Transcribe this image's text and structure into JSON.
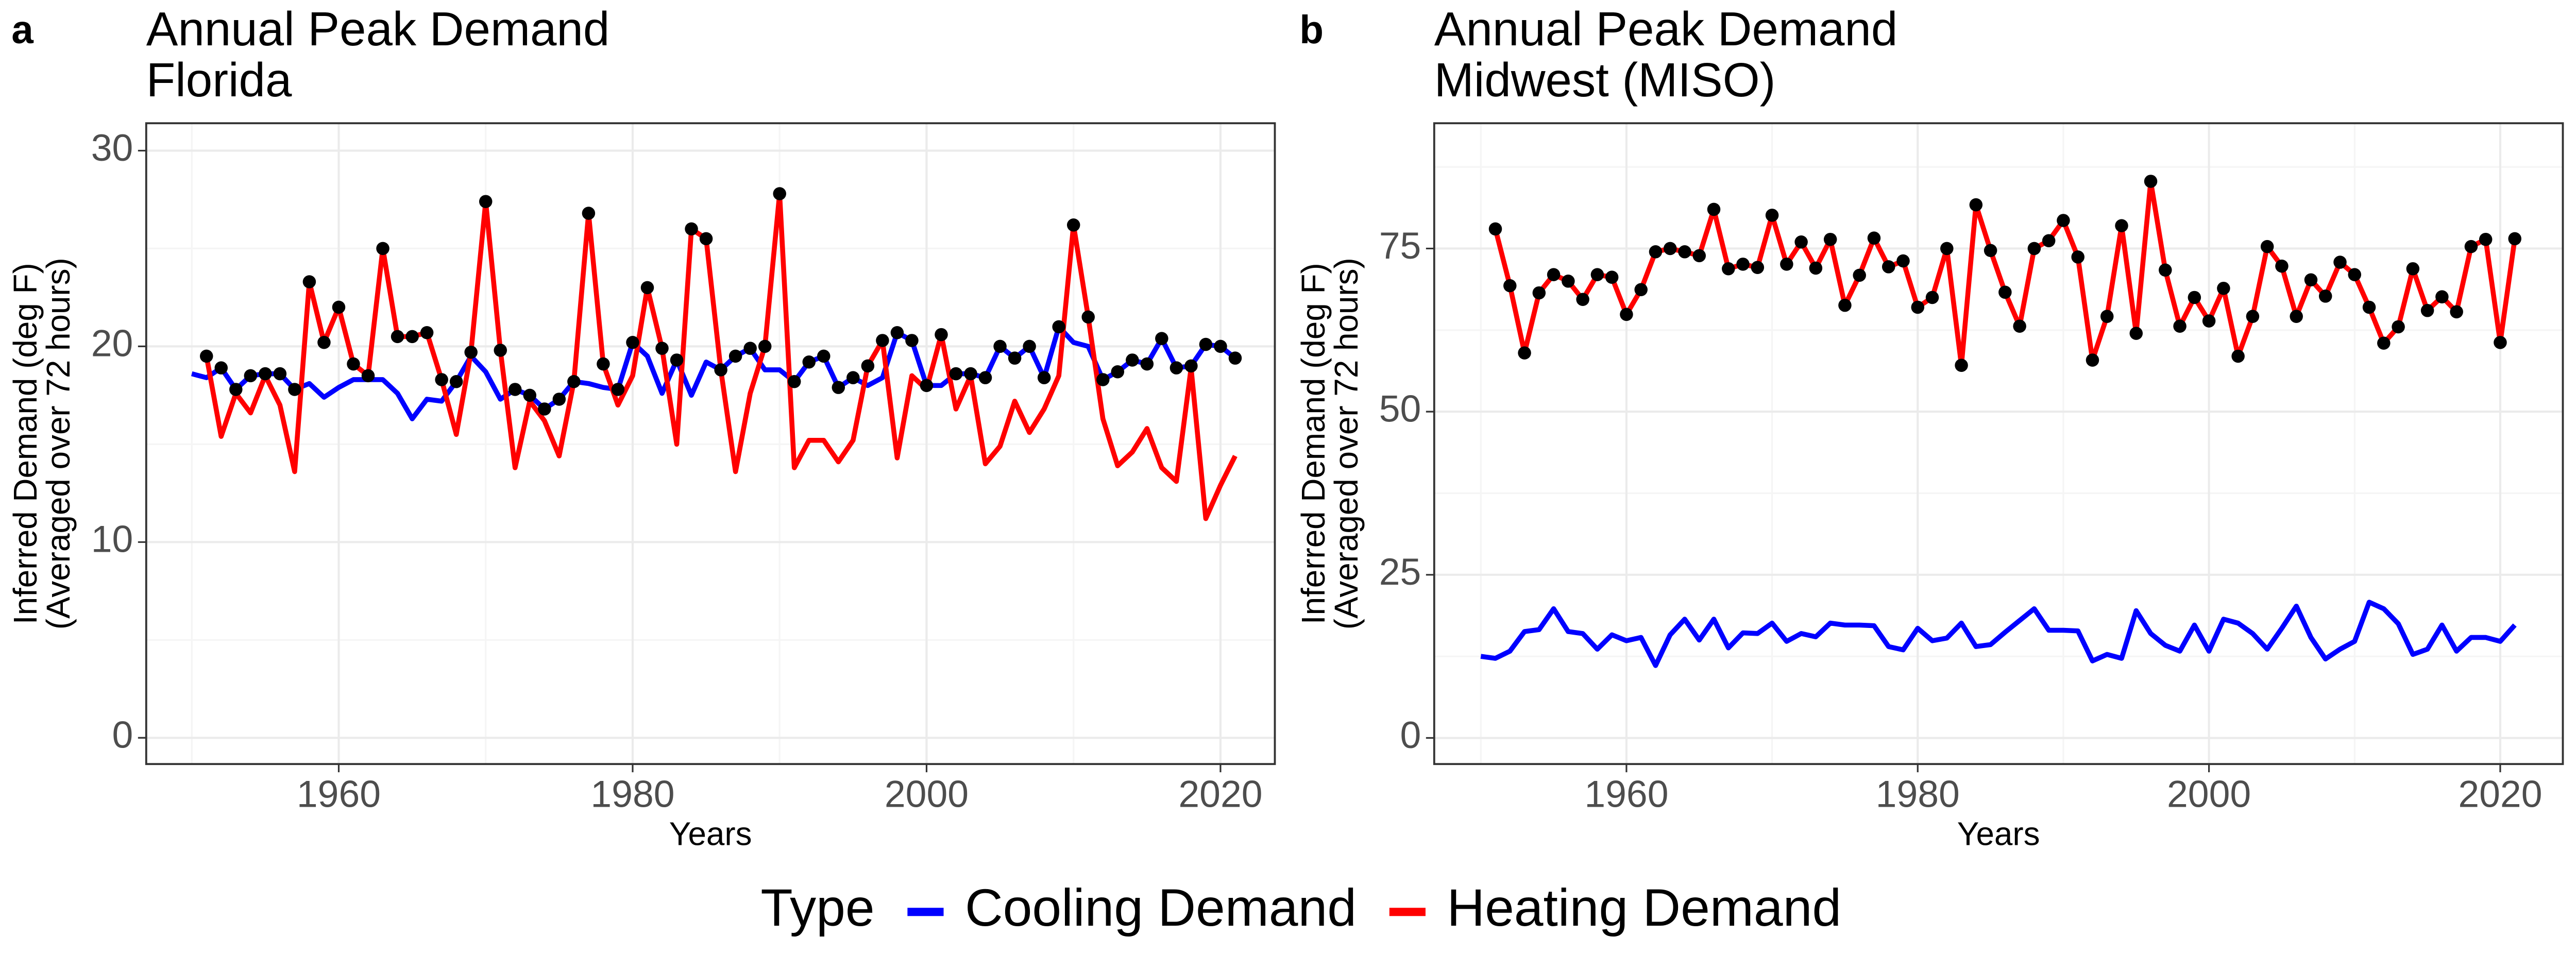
{
  "chart_data": [
    {
      "type": "line",
      "panel": "a",
      "title": "Annual Peak Demand",
      "subtitle": "Florida",
      "xlabel": "Years",
      "ylabel": [
        "Inferred Demand (deg F)",
        "(Averaged over 72 hours)"
      ],
      "legend_title": "Type",
      "x": [
        1950,
        1951,
        1952,
        1953,
        1954,
        1955,
        1956,
        1957,
        1958,
        1959,
        1960,
        1961,
        1962,
        1963,
        1964,
        1965,
        1966,
        1967,
        1968,
        1969,
        1970,
        1971,
        1972,
        1973,
        1974,
        1975,
        1976,
        1977,
        1978,
        1979,
        1980,
        1981,
        1982,
        1983,
        1984,
        1985,
        1986,
        1987,
        1988,
        1989,
        1990,
        1991,
        1992,
        1993,
        1994,
        1995,
        1996,
        1997,
        1998,
        1999,
        2000,
        2001,
        2002,
        2003,
        2004,
        2005,
        2006,
        2007,
        2008,
        2009,
        2010,
        2011,
        2012,
        2013,
        2014,
        2015,
        2016,
        2017,
        2018,
        2019,
        2020,
        2021
      ],
      "series": [
        {
          "name": "Cooling Demand",
          "color": "#0000ff",
          "values": [
            18.6,
            18.4,
            18.9,
            17.8,
            18.5,
            18.6,
            18.6,
            17.8,
            18.1,
            17.4,
            17.9,
            18.3,
            18.3,
            18.3,
            17.6,
            16.3,
            17.3,
            17.2,
            18.2,
            19.5,
            18.7,
            17.3,
            17.8,
            17.5,
            16.8,
            17.3,
            18.2,
            18.1,
            17.9,
            17.8,
            20.2,
            19.5,
            17.6,
            19.3,
            17.5,
            19.2,
            18.8,
            19.5,
            19.9,
            18.8,
            18.8,
            18.2,
            19.2,
            19.5,
            17.9,
            18.4,
            18.0,
            18.4,
            20.7,
            20.3,
            18.0,
            18.0,
            18.6,
            18.6,
            18.4,
            20.0,
            19.4,
            20.0,
            18.4,
            21.0,
            20.2,
            20.0,
            18.3,
            18.7,
            19.3,
            19.1,
            20.4,
            18.9,
            19.0,
            20.1,
            20.0,
            19.4
          ]
        },
        {
          "name": "Heating Demand",
          "color": "#ff0000",
          "values": [
            null,
            19.5,
            15.4,
            17.6,
            16.6,
            18.5,
            17.0,
            13.6,
            23.3,
            20.2,
            22.0,
            19.1,
            18.5,
            25.0,
            20.5,
            20.5,
            20.7,
            18.3,
            15.5,
            19.7,
            27.4,
            19.8,
            13.8,
            17.2,
            16.2,
            14.4,
            18.2,
            26.8,
            19.1,
            17.0,
            18.5,
            23.0,
            19.9,
            15.0,
            26.0,
            25.5,
            18.8,
            13.6,
            17.6,
            20.0,
            27.8,
            13.8,
            15.2,
            15.2,
            14.1,
            15.2,
            19.0,
            20.3,
            14.3,
            18.5,
            17.8,
            20.6,
            16.8,
            18.5,
            14.0,
            14.9,
            17.2,
            15.6,
            16.8,
            18.5,
            26.2,
            21.5,
            16.3,
            13.9,
            14.6,
            15.8,
            13.8,
            13.1,
            18.9,
            11.2,
            12.9,
            14.4
          ]
        }
      ],
      "xlim": [
        1946.9,
        2023.7
      ],
      "xticks": [
        1960,
        1980,
        2000,
        2020
      ],
      "ylim": [
        -1.34,
        31.4
      ],
      "yticks": [
        0,
        10,
        20,
        30
      ],
      "grid": true,
      "peak_points_color": "#000000"
    },
    {
      "type": "line",
      "panel": "b",
      "title": "Annual Peak Demand",
      "subtitle": "Midwest (MISO)",
      "xlabel": "Years",
      "ylabel": [
        "Inferred Demand (deg F)",
        "(Averaged over 72 hours)"
      ],
      "x": [
        1950,
        1951,
        1952,
        1953,
        1954,
        1955,
        1956,
        1957,
        1958,
        1959,
        1960,
        1961,
        1962,
        1963,
        1964,
        1965,
        1966,
        1967,
        1968,
        1969,
        1970,
        1971,
        1972,
        1973,
        1974,
        1975,
        1976,
        1977,
        1978,
        1979,
        1980,
        1981,
        1982,
        1983,
        1984,
        1985,
        1986,
        1987,
        1988,
        1989,
        1990,
        1991,
        1992,
        1993,
        1994,
        1995,
        1996,
        1997,
        1998,
        1999,
        2000,
        2001,
        2002,
        2003,
        2004,
        2005,
        2006,
        2007,
        2008,
        2009,
        2010,
        2011,
        2012,
        2013,
        2014,
        2015,
        2016,
        2017,
        2018,
        2019,
        2020,
        2021
      ],
      "series": [
        {
          "name": "Cooling Demand",
          "color": "#0000ff",
          "values": [
            12.5,
            12.2,
            13.3,
            16.3,
            16.6,
            19.8,
            16.3,
            16,
            13.6,
            15.8,
            14.9,
            15.4,
            11.1,
            15.8,
            18.2,
            15,
            18.2,
            13.8,
            16.1,
            16,
            17.6,
            14.8,
            16,
            15.5,
            17.6,
            17.3,
            17.3,
            17.2,
            14,
            13.5,
            16.8,
            14.9,
            15.3,
            17.6,
            14,
            14.3,
            16.2,
            18,
            19.8,
            16.5,
            16.5,
            16.4,
            11.8,
            12.8,
            12.2,
            19.5,
            16,
            14.2,
            13.3,
            17.3,
            13.3,
            18.2,
            17.6,
            16,
            13.6,
            16.8,
            20.2,
            15.4,
            12.1,
            13.6,
            14.8,
            20.8,
            19.8,
            17.5,
            12.8,
            13.6,
            17.3,
            13.3,
            15.4,
            15.4,
            14.8,
            17.3
          ]
        },
        {
          "name": "Heating Demand",
          "color": "#ff0000",
          "values": [
            null,
            78,
            69.3,
            59,
            68.2,
            71,
            70,
            67.2,
            71,
            70.6,
            64.9,
            68.7,
            74.5,
            75,
            74.5,
            73.9,
            81,
            71.9,
            72.6,
            72.1,
            80.1,
            72.6,
            76,
            72,
            76.4,
            66.3,
            70.9,
            76.6,
            72.2,
            73.1,
            66,
            67.5,
            75,
            57.1,
            81.7,
            74.7,
            68.3,
            63.1,
            75,
            76.2,
            79.3,
            73.7,
            57.9,
            64.6,
            78.5,
            62,
            85.3,
            71.7,
            63.1,
            67.5,
            63.9,
            68.9,
            58.5,
            64.6,
            75.3,
            72.3,
            64.6,
            70.2,
            67.7,
            72.9,
            71,
            66,
            60.5,
            63,
            71.9,
            65.5,
            67.6,
            65.3,
            75.3,
            76.4,
            60.6,
            76.5
          ]
        }
      ],
      "xlim": [
        1946.8,
        2024.3
      ],
      "xticks": [
        1960,
        1980,
        2000,
        2020
      ],
      "ylim": [
        -4.0,
        94.2
      ],
      "yticks": [
        0,
        25,
        50,
        75
      ],
      "grid": true,
      "peak_points_color": "#000000"
    }
  ]
}
